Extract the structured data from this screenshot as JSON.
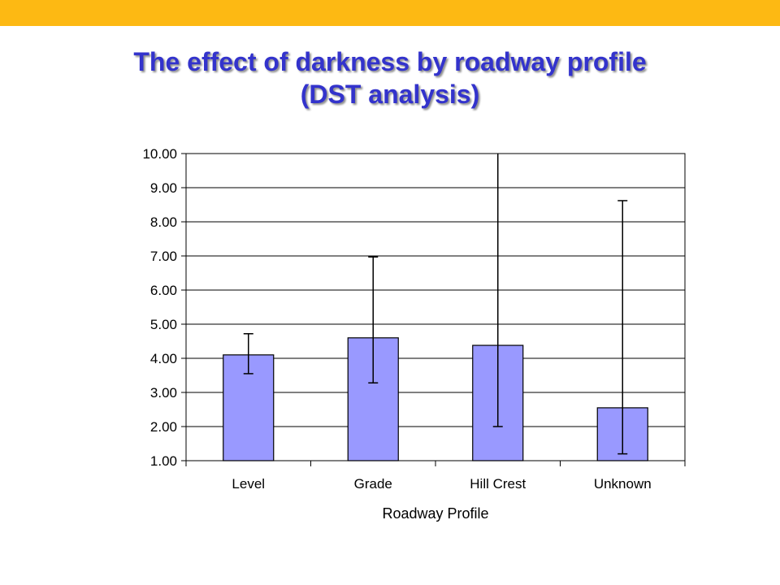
{
  "colors": {
    "top_bar": "#fdb913",
    "title": "#3333cc",
    "bar_fill": "#9999ff",
    "bar_stroke": "#000000",
    "grid": "#000000"
  },
  "slide": {
    "title_line1": "The effect of darkness by roadway profile",
    "title_line2": "(DST analysis)"
  },
  "chart_data": {
    "type": "bar",
    "xlabel": "Roadway Profile",
    "ylabel": "",
    "ylim": [
      1.0,
      10.0
    ],
    "yticks": [
      "1.00",
      "2.00",
      "3.00",
      "4.00",
      "5.00",
      "6.00",
      "7.00",
      "8.00",
      "9.00",
      "10.00"
    ],
    "grid": true,
    "categories": [
      "Level",
      "Grade",
      "Hill Crest",
      "Unknown"
    ],
    "values": [
      4.1,
      4.6,
      4.38,
      2.55
    ],
    "error_low": [
      3.55,
      3.28,
      2.0,
      1.2
    ],
    "error_high": [
      4.72,
      6.97,
      10.0,
      8.62
    ]
  }
}
